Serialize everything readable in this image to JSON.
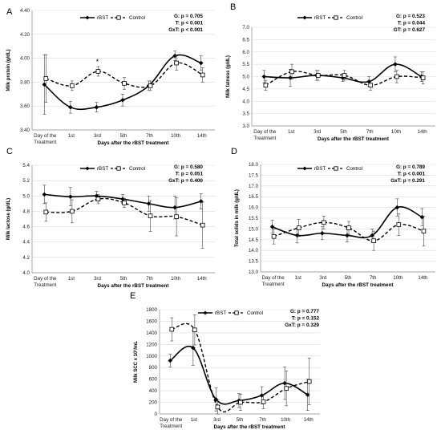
{
  "series_names": [
    "rBST",
    "Control"
  ],
  "colors": {
    "line": "#000000",
    "grid": "#d9d9d9",
    "marker_fill": "#ffffff"
  },
  "x_categories": [
    "Day of the Treatment",
    "1st",
    "3rd",
    "5th",
    "7th",
    "10th",
    "14th"
  ],
  "xlabel": "Days after the rBST treatment",
  "chart_data": [
    {
      "panel_label": "A",
      "type": "line",
      "ylabel": "Milk protein (g/dL)",
      "ylim": [
        3.4,
        4.4
      ],
      "yticks": [
        "3.40",
        "3.60",
        "3.80",
        "4.00",
        "4.20",
        "4.40"
      ],
      "stats": [
        "G: p = 0.705",
        "T: p <  0.001",
        "GxT: p < 0.001"
      ],
      "annotations": [
        {
          "text": "*",
          "category": "3rd"
        }
      ],
      "series": [
        {
          "name": "rBST",
          "values": [
            3.78,
            3.59,
            3.59,
            3.65,
            3.77,
            4.02,
            3.96
          ],
          "errors": [
            0.25,
            0.05,
            0.04,
            0.05,
            0.04,
            0.04,
            0.06
          ]
        },
        {
          "name": "Control",
          "values": [
            3.83,
            3.77,
            3.89,
            3.79,
            3.77,
            3.96,
            3.86
          ],
          "errors": [
            0.2,
            0.04,
            0.04,
            0.05,
            0.04,
            0.06,
            0.06
          ]
        }
      ]
    },
    {
      "panel_label": "B",
      "type": "line",
      "ylabel": "Milk fatness (g/dL)",
      "ylim": [
        3.0,
        7.0
      ],
      "yticks": [
        "3.0",
        "3.5",
        "4.0",
        "4.5",
        "5.0",
        "5.5",
        "6.0",
        "6.5",
        "7.0"
      ],
      "stats": [
        "G: p = 0.523",
        "T: p = 0.044",
        "GT: p = 0.627"
      ],
      "annotations": [],
      "series": [
        {
          "name": "rBST",
          "values": [
            5.0,
            4.95,
            5.05,
            4.95,
            4.8,
            5.5,
            5.0
          ],
          "errors": [
            0.25,
            0.35,
            0.2,
            0.15,
            0.2,
            0.3,
            0.2
          ]
        },
        {
          "name": "Control",
          "values": [
            4.65,
            5.2,
            5.05,
            5.05,
            4.65,
            5.0,
            4.95
          ],
          "errors": [
            0.2,
            0.3,
            0.2,
            0.2,
            0.2,
            0.25,
            0.25
          ]
        }
      ]
    },
    {
      "panel_label": "C",
      "type": "line",
      "ylabel": "Milk lactose (g/dL)",
      "ylim": [
        4.0,
        5.4
      ],
      "yticks": [
        "4.0",
        "4.2",
        "4.4",
        "4.6",
        "4.8",
        "5.0",
        "5.2",
        "5.4"
      ],
      "stats": [
        "G: p = 0.580",
        "T: p = 0.051",
        "GxT: p = 0.400"
      ],
      "annotations": [],
      "series": [
        {
          "name": "rBST",
          "values": [
            5.02,
            4.99,
            5.0,
            4.96,
            4.9,
            4.85,
            4.93
          ],
          "errors": [
            0.12,
            0.12,
            0.06,
            0.06,
            0.1,
            0.15,
            0.1
          ]
        },
        {
          "name": "Control",
          "values": [
            4.79,
            4.8,
            4.96,
            4.91,
            4.74,
            4.73,
            4.62
          ],
          "errors": [
            0.12,
            0.15,
            0.06,
            0.06,
            0.2,
            0.25,
            0.3
          ]
        }
      ]
    },
    {
      "panel_label": "D",
      "type": "line",
      "ylabel": "Total solids in milk (g/dL)",
      "ylim": [
        13.0,
        18.0
      ],
      "yticks": [
        "13.0",
        "13.5",
        "14.0",
        "14.5",
        "15.0",
        "15.5",
        "16.0",
        "16.5",
        "17.0",
        "17.5",
        "18.0"
      ],
      "stats": [
        "G: p = 0.789",
        "T: p < 0.001",
        "GxT: p = 0.291"
      ],
      "annotations": [],
      "series": [
        {
          "name": "rBST",
          "values": [
            15.1,
            14.7,
            14.8,
            14.7,
            14.7,
            16.0,
            15.55
          ],
          "errors": [
            0.3,
            0.35,
            0.3,
            0.3,
            0.3,
            0.4,
            0.4
          ]
        },
        {
          "name": "Control",
          "values": [
            14.65,
            15.05,
            15.3,
            15.05,
            14.45,
            15.2,
            14.9
          ],
          "errors": [
            0.35,
            0.4,
            0.3,
            0.3,
            0.45,
            0.5,
            0.7
          ]
        }
      ]
    },
    {
      "panel_label": "E",
      "type": "line",
      "ylabel": "Milk SCC x 10³/mL",
      "ylim": [
        0,
        1800
      ],
      "yticks": [
        "0",
        "200",
        "400",
        "600",
        "800",
        "1000",
        "1200",
        "1400",
        "1600",
        "1800"
      ],
      "stats": [
        "G: p = 0.777",
        "T: p = 0.152",
        "GxT: p = 0.329"
      ],
      "annotations": [],
      "series": [
        {
          "name": "rBST",
          "values": [
            920,
            1140,
            250,
            230,
            320,
            530,
            330
          ],
          "errors": [
            110,
            300,
            200,
            120,
            150,
            280,
            270
          ]
        },
        {
          "name": "Control",
          "values": [
            1460,
            1450,
            120,
            200,
            210,
            440,
            560
          ],
          "errors": [
            200,
            260,
            120,
            140,
            120,
            300,
            400
          ]
        }
      ]
    }
  ]
}
